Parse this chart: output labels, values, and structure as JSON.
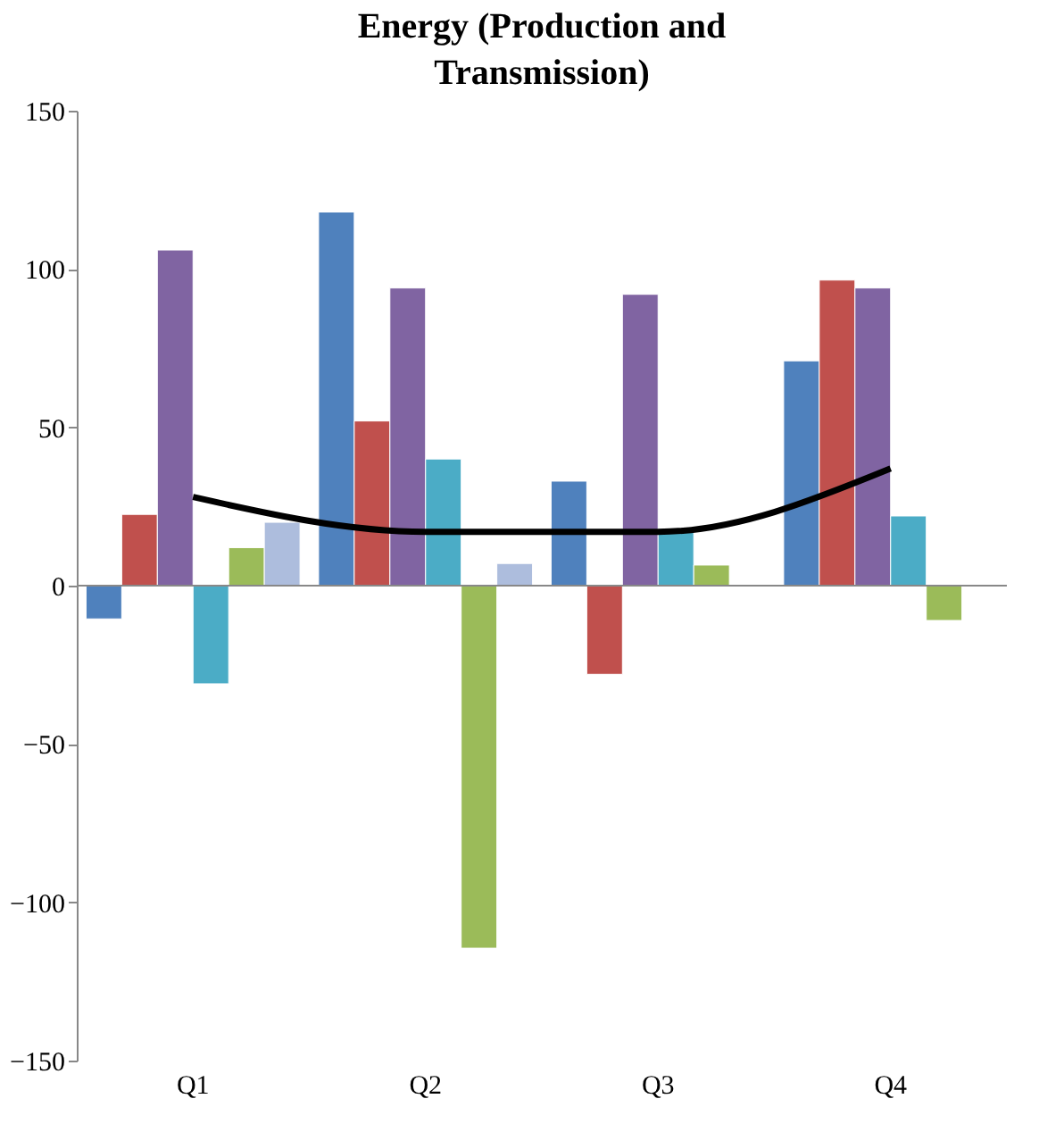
{
  "chart_data": {
    "type": "bar",
    "title": "Energy (Production and Transmission)",
    "categories": [
      "Q1",
      "Q2",
      "Q3",
      "Q4"
    ],
    "series": [
      {
        "color": "#4f81bd",
        "values": [
          -10.5,
          118,
          33,
          71
        ]
      },
      {
        "color": "#c0504d",
        "values": [
          22.5,
          52,
          -28,
          96.5
        ]
      },
      {
        "color": "#8064a2",
        "values": [
          106,
          94,
          92,
          94
        ]
      },
      {
        "color": "#4bacc6",
        "values": [
          -31,
          40,
          18,
          22
        ]
      },
      {
        "color": "#9bbb59",
        "values": [
          12,
          -114.5,
          6.5,
          -11
        ]
      },
      {
        "color": "#adbddd",
        "values": [
          20,
          7,
          null,
          null
        ]
      },
      {
        "type": "line",
        "color": "#000000",
        "values": [
          28,
          17,
          17,
          37
        ]
      }
    ],
    "ylim": [
      -150,
      150
    ],
    "yticks": [
      -150,
      -100,
      -50,
      0,
      50,
      100,
      150
    ]
  }
}
